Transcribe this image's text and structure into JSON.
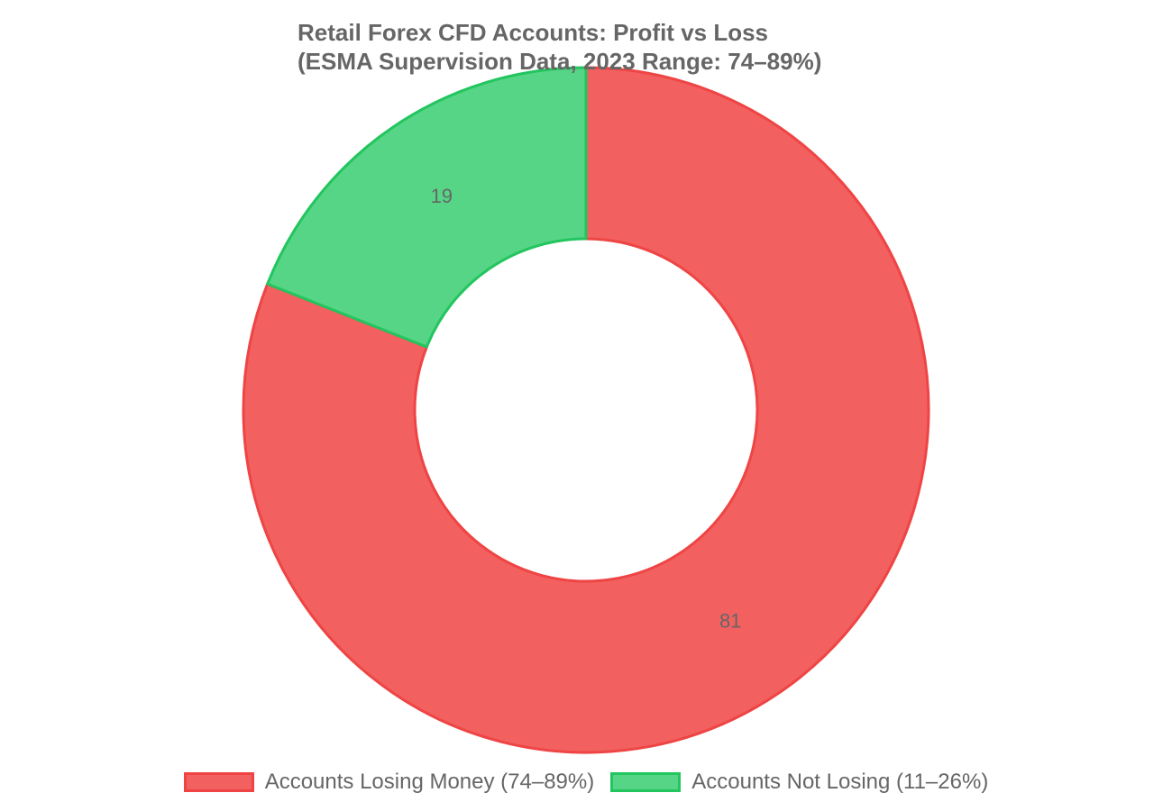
{
  "chart_data": {
    "type": "pie",
    "variant": "doughnut",
    "title": [
      "Retail Forex CFD Accounts: Profit vs Loss",
      "(ESMA Supervision Data, 2023 Range: 74–89%)"
    ],
    "categories": [
      "Accounts Losing Money (74–89%)",
      "Accounts Not Losing (11–26%)"
    ],
    "values": [
      81,
      19
    ],
    "data_labels": [
      "81",
      "19"
    ],
    "colors": {
      "fill": [
        "#f26060",
        "#56d586"
      ],
      "border": [
        "#ef4444",
        "#22c55e"
      ]
    },
    "legend_position": "bottom"
  }
}
